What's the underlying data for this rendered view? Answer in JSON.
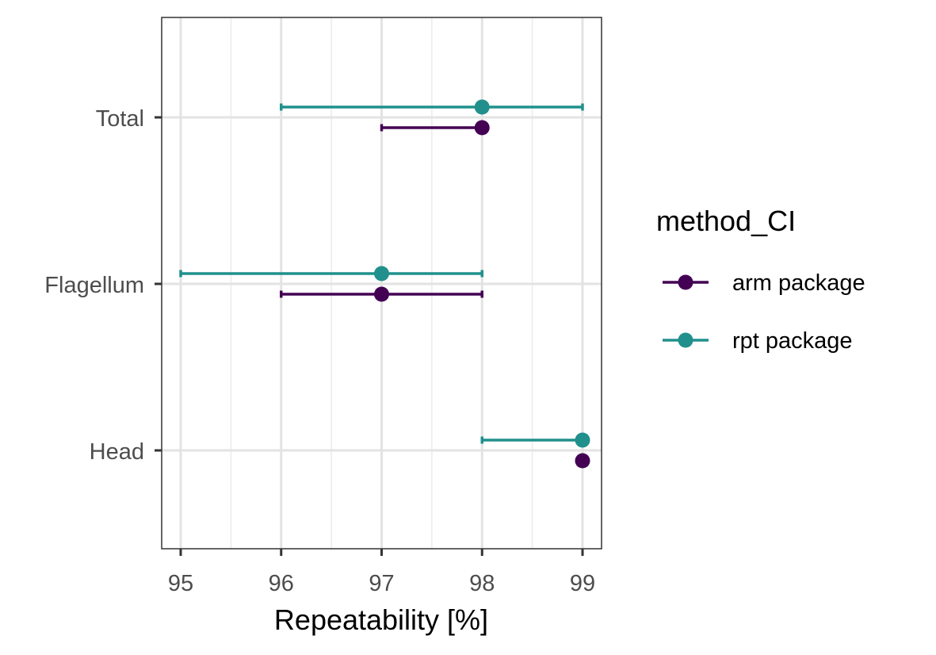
{
  "chart_data": {
    "type": "dot-errorbar",
    "title": "",
    "xlabel": "Repeatability [%]",
    "ylabel": "",
    "xlim": [
      94.9,
      99.1
    ],
    "xticks": [
      95,
      96,
      97,
      98,
      99
    ],
    "xtick_labels": [
      "95",
      "96",
      "97",
      "98",
      "99"
    ],
    "categories": [
      "Total",
      "Flagellum",
      "Head"
    ],
    "grid": true,
    "legend": {
      "title": "method_CI",
      "position": "right",
      "entries": [
        "arm package",
        "rpt package"
      ]
    },
    "series": [
      {
        "name": "arm package",
        "color": "#440154",
        "points": [
          {
            "category": "Total",
            "estimate": 98,
            "lower": 97,
            "upper": 98
          },
          {
            "category": "Flagellum",
            "estimate": 97,
            "lower": 96,
            "upper": 98
          },
          {
            "category": "Head",
            "estimate": 99,
            "lower": 99,
            "upper": 99
          }
        ]
      },
      {
        "name": "rpt package",
        "color": "#21908C",
        "points": [
          {
            "category": "Total",
            "estimate": 98,
            "lower": 96,
            "upper": 99
          },
          {
            "category": "Flagellum",
            "estimate": 97,
            "lower": 95,
            "upper": 98
          },
          {
            "category": "Head",
            "estimate": 99,
            "lower": 98,
            "upper": 99
          }
        ]
      }
    ]
  }
}
